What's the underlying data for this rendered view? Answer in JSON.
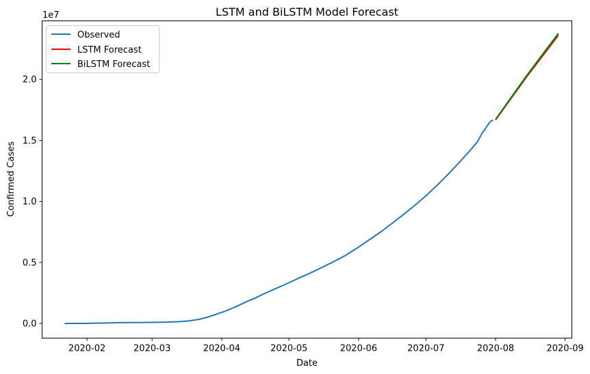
{
  "chart_data": {
    "type": "line",
    "title": "LSTM and BiLSTM Model Forecast",
    "xlabel": "Date",
    "ylabel": "Confirmed Cases",
    "y_offset_label": "1e7",
    "y_scale_note": "values in units of 1e7",
    "xlim": [
      "2020-01-12",
      "2020-09-04"
    ],
    "ylim": [
      -0.12,
      2.48
    ],
    "x_ticks": [
      "2020-02",
      "2020-03",
      "2020-04",
      "2020-05",
      "2020-06",
      "2020-07",
      "2020-08",
      "2020-09"
    ],
    "y_ticks": [
      0.0,
      0.5,
      1.0,
      1.5,
      2.0
    ],
    "y_tick_labels": [
      "0.0",
      "0.5",
      "1.0",
      "1.5",
      "2.0"
    ],
    "grid": false,
    "legend_position": "top-left",
    "series": [
      {
        "name": "Observed",
        "color": "#1f77b4",
        "points": [
          [
            "2020-01-22",
            0.0
          ],
          [
            "2020-02-01",
            0.0012
          ],
          [
            "2020-02-10",
            0.004
          ],
          [
            "2020-02-15",
            0.0069
          ],
          [
            "2020-02-22",
            0.0078
          ],
          [
            "2020-03-01",
            0.0088
          ],
          [
            "2020-03-08",
            0.011
          ],
          [
            "2020-03-13",
            0.0145
          ],
          [
            "2020-03-18",
            0.022
          ],
          [
            "2020-03-22",
            0.034
          ],
          [
            "2020-03-26",
            0.053
          ],
          [
            "2020-03-30",
            0.078
          ],
          [
            "2020-04-03",
            0.104
          ],
          [
            "2020-04-08",
            0.143
          ],
          [
            "2020-04-12",
            0.178
          ],
          [
            "2020-04-16",
            0.209
          ],
          [
            "2020-04-20",
            0.245
          ],
          [
            "2020-04-25",
            0.285
          ],
          [
            "2020-05-01",
            0.334
          ],
          [
            "2020-05-06",
            0.377
          ],
          [
            "2020-05-11",
            0.418
          ],
          [
            "2020-05-16",
            0.462
          ],
          [
            "2020-05-21",
            0.508
          ],
          [
            "2020-05-26",
            0.556
          ],
          [
            "2020-06-01",
            0.626
          ],
          [
            "2020-06-06",
            0.689
          ],
          [
            "2020-06-11",
            0.752
          ],
          [
            "2020-06-16",
            0.822
          ],
          [
            "2020-06-21",
            0.893
          ],
          [
            "2020-06-26",
            0.967
          ],
          [
            "2020-07-01",
            1.046
          ],
          [
            "2020-07-06",
            1.133
          ],
          [
            "2020-07-11",
            1.225
          ],
          [
            "2020-07-16",
            1.323
          ],
          [
            "2020-07-21",
            1.425
          ],
          [
            "2020-07-24",
            1.49
          ],
          [
            "2020-07-26",
            1.56
          ],
          [
            "2020-07-28",
            1.61
          ],
          [
            "2020-07-29",
            1.64
          ],
          [
            "2020-07-30",
            1.66
          ],
          [
            "2020-07-31",
            1.665
          ]
        ]
      },
      {
        "name": "LSTM Forecast",
        "color": "#ff0000",
        "points": [
          [
            "2020-08-01",
            1.668
          ],
          [
            "2020-08-15",
            2.025
          ],
          [
            "2020-08-29",
            2.362
          ]
        ]
      },
      {
        "name": "BiLSTM Forecast",
        "color": "#008000",
        "points": [
          [
            "2020-08-01",
            1.672
          ],
          [
            "2020-08-15",
            2.035
          ],
          [
            "2020-08-29",
            2.378
          ]
        ]
      }
    ]
  }
}
